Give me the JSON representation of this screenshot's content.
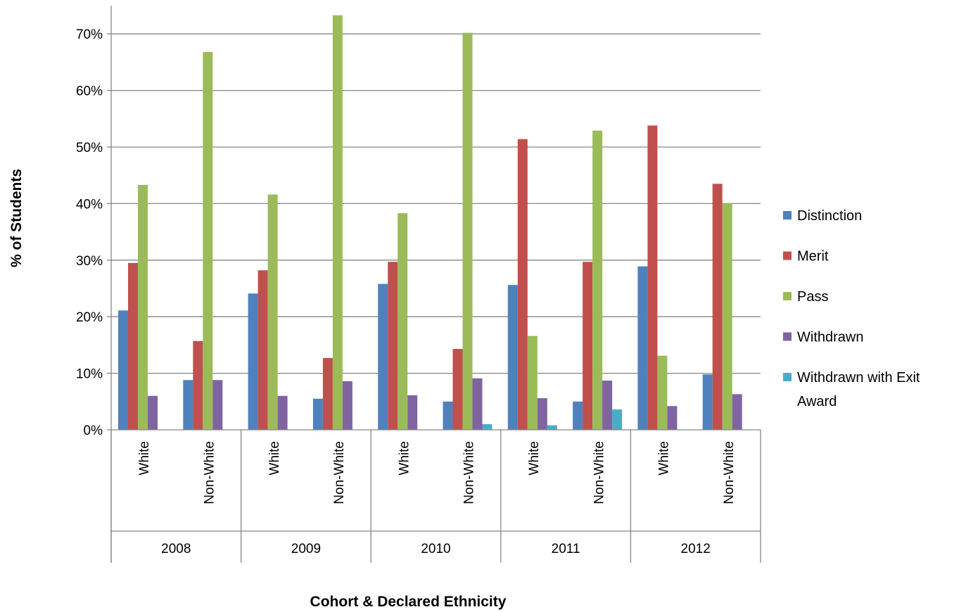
{
  "chart_data": {
    "type": "bar",
    "title": "",
    "xlabel": "Cohort & Declared Ethnicity",
    "ylabel": "% of Students",
    "ylim": [
      0,
      0.75
    ],
    "yticks": [
      0,
      0.1,
      0.2,
      0.3,
      0.4,
      0.5,
      0.6,
      0.7
    ],
    "ytick_labels": [
      "0%",
      "10%",
      "20%",
      "30%",
      "40%",
      "50%",
      "60%",
      "70%"
    ],
    "grid": true,
    "legend_position": "right",
    "groups": [
      "2008",
      "2009",
      "2010",
      "2011",
      "2012"
    ],
    "categories": [
      "White",
      "Non-White",
      "White",
      "Non-White",
      "White",
      "Non-White",
      "White",
      "Non-White",
      "White",
      "Non-White"
    ],
    "series": [
      {
        "name": "Distinction",
        "color": "#4F81BD",
        "values": [
          0.211,
          0.088,
          0.241,
          0.055,
          0.258,
          0.05,
          0.256,
          0.05,
          0.289,
          0.098
        ]
      },
      {
        "name": "Merit",
        "color": "#C0504D",
        "values": [
          0.295,
          0.157,
          0.282,
          0.127,
          0.297,
          0.143,
          0.514,
          0.297,
          0.538,
          0.435
        ]
      },
      {
        "name": "Pass",
        "color": "#9BBB59",
        "values": [
          0.433,
          0.668,
          0.416,
          0.733,
          0.383,
          0.702,
          0.166,
          0.529,
          0.131,
          0.401
        ]
      },
      {
        "name": "Withdrawn",
        "color": "#8064A2",
        "values": [
          0.06,
          0.088,
          0.06,
          0.086,
          0.061,
          0.091,
          0.056,
          0.087,
          0.042,
          0.063
        ]
      },
      {
        "name": "Withdrawn with Exit Award",
        "color": "#4BACC6",
        "values": [
          0,
          0,
          0,
          0,
          0,
          0.01,
          0.008,
          0.036,
          0,
          0
        ]
      }
    ]
  }
}
